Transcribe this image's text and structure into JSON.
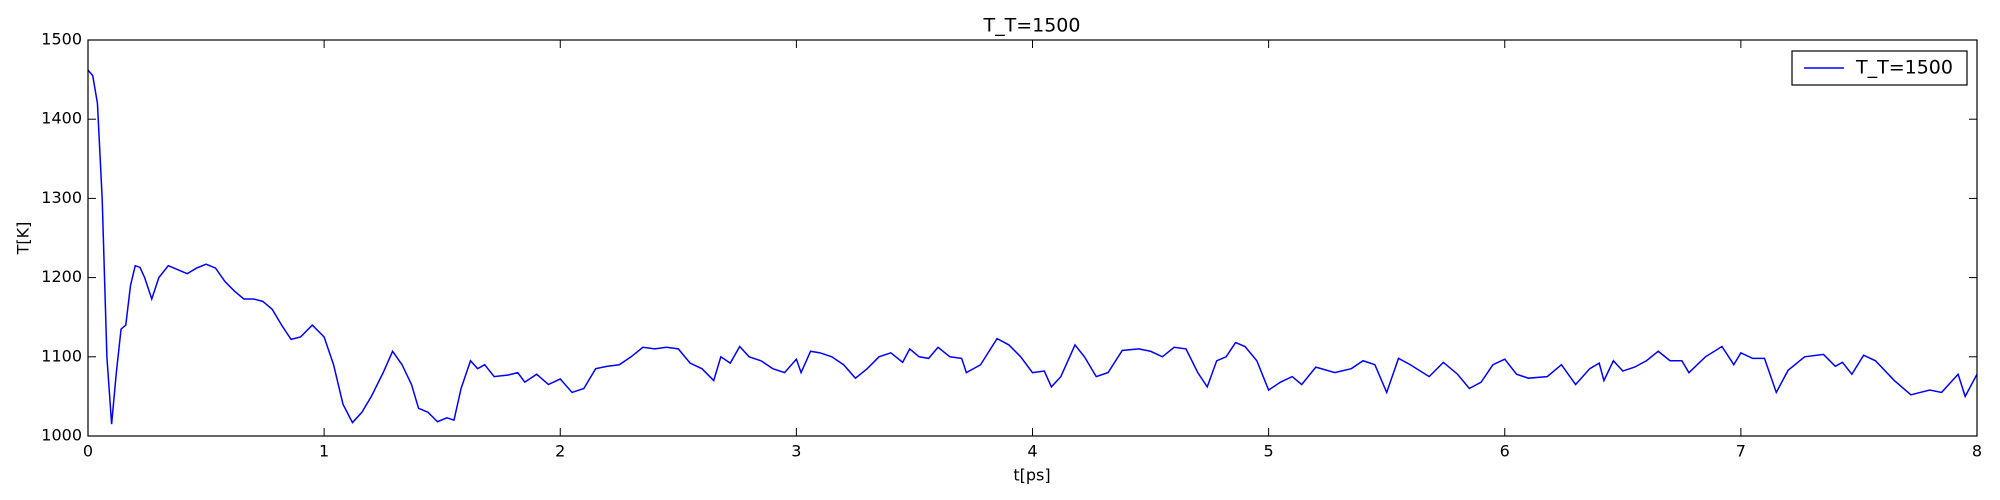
{
  "chart_data": {
    "type": "line",
    "title": "T_T=1500",
    "x_label": "t[ps]",
    "y_label": "T[K]",
    "x": [
      0,
      0.02,
      0.04,
      0.06,
      0.08,
      0.1,
      0.12,
      0.14,
      0.16,
      0.18,
      0.2,
      0.22,
      0.24,
      0.27,
      0.3,
      0.34,
      0.38,
      0.42,
      0.46,
      0.5,
      0.54,
      0.58,
      0.62,
      0.66,
      0.7,
      0.74,
      0.78,
      0.82,
      0.86,
      0.9,
      0.95,
      1,
      1.04,
      1.08,
      1.12,
      1.16,
      1.2,
      1.25,
      1.29,
      1.33,
      1.37,
      1.4,
      1.44,
      1.48,
      1.52,
      1.55,
      1.58,
      1.62,
      1.65,
      1.68,
      1.72,
      1.78,
      1.82,
      1.85,
      1.9,
      1.95,
      2,
      2.05,
      2.1,
      2.15,
      2.2,
      2.25,
      2.3,
      2.35,
      2.4,
      2.45,
      2.5,
      2.55,
      2.6,
      2.65,
      2.68,
      2.72,
      2.76,
      2.8,
      2.85,
      2.9,
      2.95,
      3,
      3.02,
      3.06,
      3.1,
      3.15,
      3.2,
      3.25,
      3.3,
      3.35,
      3.4,
      3.45,
      3.48,
      3.52,
      3.56,
      3.6,
      3.65,
      3.7,
      3.72,
      3.78,
      3.85,
      3.9,
      3.95,
      4,
      4.05,
      4.08,
      4.12,
      4.18,
      4.22,
      4.27,
      4.32,
      4.38,
      4.45,
      4.5,
      4.55,
      4.6,
      4.65,
      4.7,
      4.74,
      4.78,
      4.82,
      4.86,
      4.9,
      4.95,
      5,
      5.05,
      5.1,
      5.14,
      5.2,
      5.28,
      5.35,
      5.4,
      5.45,
      5.5,
      5.55,
      5.6,
      5.68,
      5.74,
      5.8,
      5.85,
      5.9,
      5.95,
      6,
      6.05,
      6.1,
      6.18,
      6.24,
      6.3,
      6.36,
      6.4,
      6.42,
      6.46,
      6.5,
      6.55,
      6.6,
      6.65,
      6.7,
      6.75,
      6.78,
      6.85,
      6.92,
      6.97,
      7,
      7.05,
      7.1,
      7.15,
      7.2,
      7.27,
      7.35,
      7.4,
      7.43,
      7.47,
      7.52,
      7.57,
      7.65,
      7.72,
      7.8,
      7.85,
      7.92,
      7.95,
      8
    ],
    "series": [
      {
        "name": "T_T=1500",
        "color": "#0000ff",
        "values": [
          1462,
          1455,
          1420,
          1300,
          1100,
          1015,
          1080,
          1135,
          1140,
          1190,
          1215,
          1213,
          1200,
          1173,
          1200,
          1215,
          1210,
          1205,
          1212,
          1217,
          1212,
          1195,
          1183,
          1173,
          1173,
          1170,
          1160,
          1140,
          1122,
          1125,
          1140,
          1125,
          1090,
          1040,
          1017,
          1030,
          1050,
          1080,
          1107,
          1090,
          1065,
          1035,
          1030,
          1018,
          1023,
          1020,
          1060,
          1095,
          1085,
          1090,
          1075,
          1077,
          1080,
          1068,
          1078,
          1065,
          1072,
          1055,
          1060,
          1085,
          1088,
          1090,
          1100,
          1112,
          1110,
          1112,
          1110,
          1092,
          1085,
          1070,
          1100,
          1092,
          1113,
          1100,
          1095,
          1085,
          1080,
          1097,
          1080,
          1107,
          1105,
          1100,
          1090,
          1073,
          1085,
          1100,
          1105,
          1093,
          1110,
          1100,
          1098,
          1112,
          1100,
          1098,
          1080,
          1090,
          1123,
          1115,
          1100,
          1080,
          1082,
          1062,
          1075,
          1115,
          1100,
          1075,
          1080,
          1108,
          1110,
          1107,
          1100,
          1112,
          1110,
          1080,
          1062,
          1095,
          1100,
          1118,
          1113,
          1095,
          1058,
          1068,
          1075,
          1065,
          1087,
          1080,
          1085,
          1095,
          1090,
          1055,
          1098,
          1090,
          1075,
          1093,
          1078,
          1060,
          1068,
          1090,
          1097,
          1078,
          1073,
          1075,
          1090,
          1065,
          1085,
          1092,
          1070,
          1095,
          1082,
          1087,
          1095,
          1107,
          1095,
          1095,
          1080,
          1100,
          1113,
          1090,
          1105,
          1098,
          1098,
          1055,
          1083,
          1100,
          1103,
          1088,
          1093,
          1078,
          1102,
          1095,
          1070,
          1052,
          1058,
          1055,
          1078,
          1050,
          1078
        ]
      }
    ],
    "xlim": [
      0,
      8
    ],
    "ylim": [
      1000,
      1500
    ],
    "xticks": [
      0,
      1,
      2,
      3,
      4,
      5,
      6,
      7,
      8
    ],
    "yticks": [
      1000,
      1100,
      1200,
      1300,
      1400,
      1500
    ],
    "legend": "upper right",
    "grid": false
  }
}
